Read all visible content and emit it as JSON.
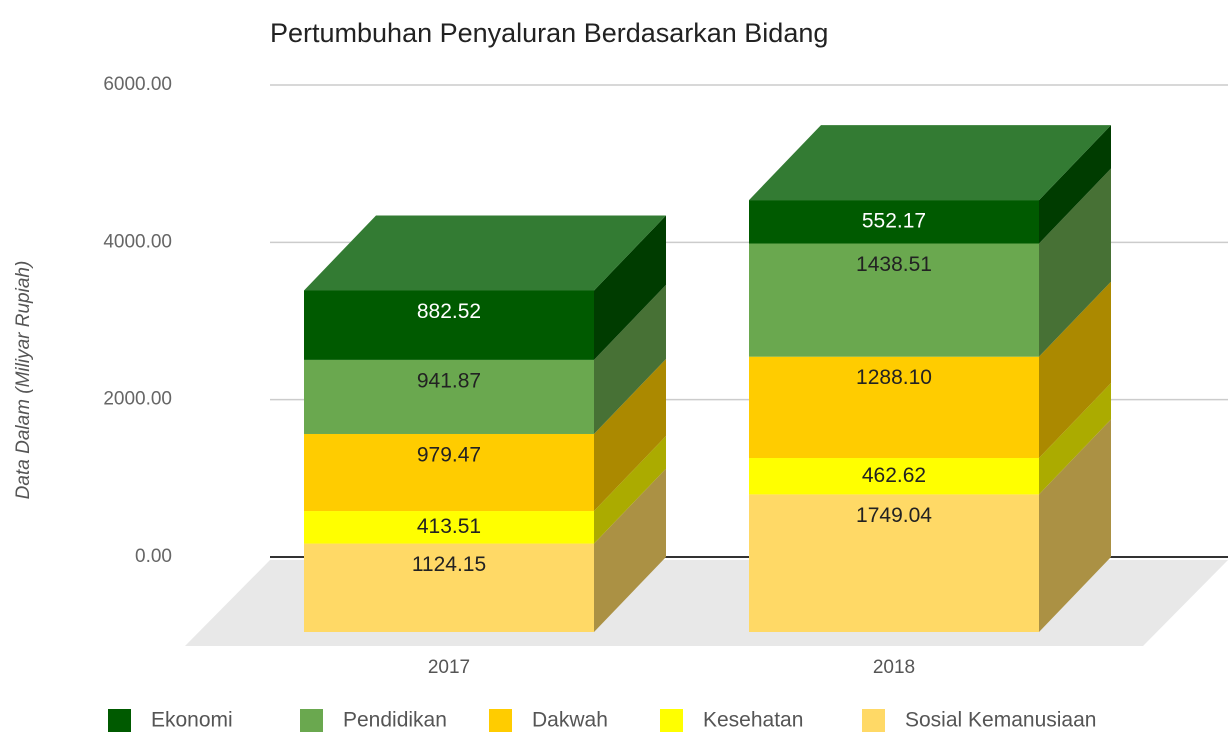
{
  "chart_data": {
    "type": "bar3d_stacked",
    "title": "Pertumbuhan Penyaluran Berdasarkan Bidang",
    "y_label": "Data Dalam (Miliyar Rupiah)",
    "categories": [
      "2017",
      "2018"
    ],
    "series": [
      {
        "name": "Ekonomi",
        "color": "#005a00",
        "values": [
          882.52,
          552.17
        ]
      },
      {
        "name": "Pendidikan",
        "color": "#6aa84f",
        "values": [
          941.87,
          1438.51
        ]
      },
      {
        "name": "Dakwah",
        "color": "#ffcc00",
        "values": [
          979.47,
          1288.1
        ],
        "value_labels": [
          "979.47",
          "1288.10"
        ]
      },
      {
        "name": "Kesehatan",
        "color": "#ffff00",
        "values": [
          413.51,
          462.62
        ]
      },
      {
        "name": "Sosial Kemanusiaan",
        "color": "#ffd966",
        "values": [
          1124.15,
          1749.04
        ]
      }
    ],
    "ylim": [
      0,
      6000
    ],
    "yticks": [
      {
        "value": 0,
        "label": "0.00"
      },
      {
        "value": 2000,
        "label": "2000.00"
      },
      {
        "value": 4000,
        "label": "4000.00"
      },
      {
        "value": 6000,
        "label": "6000.00"
      }
    ],
    "grid": true,
    "legend": "bottom"
  }
}
